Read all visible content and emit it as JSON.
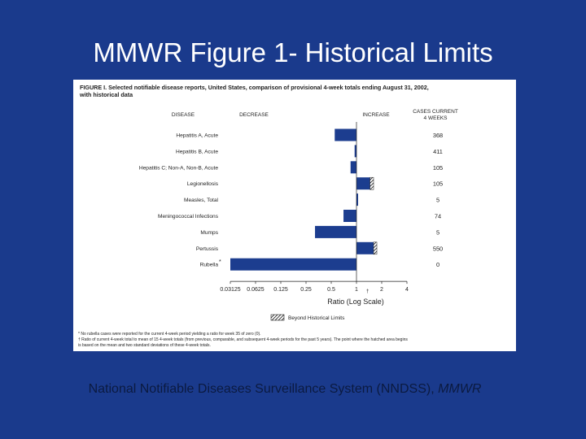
{
  "slide": {
    "title": "MMWR Figure 1- Historical Limits",
    "caption_main": "National Notifiable Diseases Surveillance System (NNDSS), ",
    "caption_italic": "MMWR"
  },
  "colors": {
    "background": "#1a3a8c",
    "bar": "#1c3d8f",
    "caption": "#0b1a40"
  },
  "figure": {
    "title_line1": "FIGURE I. Selected notifiable disease reports, United States, comparison of provisional 4-week totals ending August 31, 2002,",
    "title_line2": "with historical data",
    "col_disease": "DISEASE",
    "col_decrease": "DECREASE",
    "col_increase": "INCREASE",
    "col_cases_line1": "CASES CURRENT",
    "col_cases_line2": "4 WEEKS",
    "legend_label": "Beyond Historical Limits",
    "footnote1": "* No rubella cases were reported for the current 4-week period yielding a ratio for week 35 of zero (0).",
    "footnote2": "† Ratio of current 4-week total to mean of 15 4-week totals (from previous, comparable, and subsequent 4-week periods for the past 5 years). The point where the hatched area begins",
    "footnote3": "is based on the mean and two standard deviations of these 4-week totals."
  },
  "chart_data": {
    "type": "bar",
    "orientation": "horizontal",
    "xscale": "log2",
    "xlim": [
      0.03125,
      4
    ],
    "xlabel": "Ratio (Log Scale)",
    "xlabel_mark": "†",
    "xticks": [
      0.03125,
      0.0625,
      0.125,
      0.25,
      0.5,
      1,
      2,
      4
    ],
    "xtick_labels": [
      "0.03125",
      "0.0625",
      "0.125",
      "0.25",
      "0.5",
      "1",
      "2",
      "4"
    ],
    "reference_line": 1,
    "categories": [
      "Hepatitis A, Acute",
      "Hepatitis B, Acute",
      "Hepatitis C; Non-A, Non-B, Acute",
      "Legionellosis",
      "Measles, Total",
      "Meningococcal Infections",
      "Mumps",
      "Pertussis",
      "Rubella"
    ],
    "category_marks": [
      "",
      "",
      "",
      "",
      "",
      "",
      "",
      "",
      "*"
    ],
    "values": [
      0.55,
      0.95,
      0.85,
      1.6,
      1,
      0.7,
      0.32,
      1.75,
      0.03125
    ],
    "beyond_limit_start": [
      null,
      null,
      null,
      1.45,
      null,
      null,
      null,
      1.6,
      null
    ],
    "cases_current_4_weeks": [
      "368",
      "411",
      "105",
      "105",
      "5",
      "74",
      "5",
      "550",
      "0"
    ]
  }
}
